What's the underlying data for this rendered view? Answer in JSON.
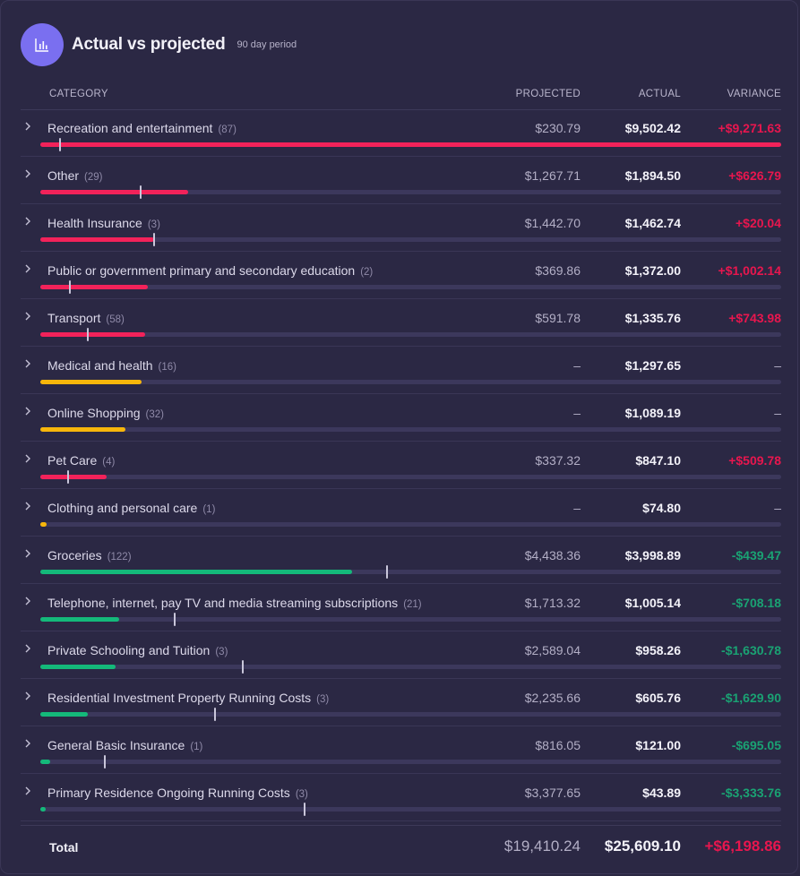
{
  "header": {
    "title": "Actual vs projected",
    "subtitle": "90 day period",
    "icon": "bar-chart-icon",
    "accent": "#7a6ff0"
  },
  "columns": {
    "category": "CATEGORY",
    "projected": "PROJECTED",
    "actual": "ACTUAL",
    "variance": "VARIANCE"
  },
  "colors": {
    "over": "#f2225a",
    "unprojected": "#f7b60b",
    "under": "#14b97a",
    "track": "#3c385c"
  },
  "rows": [
    {
      "category": "Recreation and entertainment",
      "count": "(87)",
      "projected": "$230.79",
      "actual": "$9,502.42",
      "variance": "+$9,271.63",
      "status": "over",
      "bar_fill": 1.0,
      "projected_marker": 0.025
    },
    {
      "category": "Other",
      "count": "(29)",
      "projected": "$1,267.71",
      "actual": "$1,894.50",
      "variance": "+$626.79",
      "status": "over",
      "bar_fill": 0.2,
      "projected_marker": 0.134
    },
    {
      "category": "Health Insurance",
      "count": "(3)",
      "projected": "$1,442.70",
      "actual": "$1,462.74",
      "variance": "+$20.04",
      "status": "over",
      "bar_fill": 0.154,
      "projected_marker": 0.152
    },
    {
      "category": "Public or government primary and secondary education",
      "count": "(2)",
      "projected": "$369.86",
      "actual": "$1,372.00",
      "variance": "+$1,002.14",
      "status": "over",
      "bar_fill": 0.145,
      "projected_marker": 0.039
    },
    {
      "category": "Transport",
      "count": "(58)",
      "projected": "$591.78",
      "actual": "$1,335.76",
      "variance": "+$743.98",
      "status": "over",
      "bar_fill": 0.141,
      "projected_marker": 0.063
    },
    {
      "category": "Medical and health",
      "count": "(16)",
      "projected": "–",
      "actual": "$1,297.65",
      "variance": "–",
      "status": "unprojected",
      "bar_fill": 0.137,
      "projected_marker": null
    },
    {
      "category": "Online Shopping",
      "count": "(32)",
      "projected": "–",
      "actual": "$1,089.19",
      "variance": "–",
      "status": "unprojected",
      "bar_fill": 0.115,
      "projected_marker": null
    },
    {
      "category": "Pet Care",
      "count": "(4)",
      "projected": "$337.32",
      "actual": "$847.10",
      "variance": "+$509.78",
      "status": "over",
      "bar_fill": 0.09,
      "projected_marker": 0.036
    },
    {
      "category": "Clothing and personal care",
      "count": "(1)",
      "projected": "–",
      "actual": "$74.80",
      "variance": "–",
      "status": "unprojected",
      "bar_fill": 0.008,
      "projected_marker": null
    },
    {
      "category": "Groceries",
      "count": "(122)",
      "projected": "$4,438.36",
      "actual": "$3,998.89",
      "variance": "-$439.47",
      "status": "under",
      "bar_fill": 0.421,
      "projected_marker": 0.467
    },
    {
      "category": "Telephone, internet, pay TV and media streaming subscriptions",
      "count": "(21)",
      "projected": "$1,713.32",
      "actual": "$1,005.14",
      "variance": "-$708.18",
      "status": "under",
      "bar_fill": 0.106,
      "projected_marker": 0.18
    },
    {
      "category": "Private Schooling and Tuition",
      "count": "(3)",
      "projected": "$2,589.04",
      "actual": "$958.26",
      "variance": "-$1,630.78",
      "status": "under",
      "bar_fill": 0.101,
      "projected_marker": 0.272
    },
    {
      "category": "Residential Investment Property Running Costs",
      "count": "(3)",
      "projected": "$2,235.66",
      "actual": "$605.76",
      "variance": "-$1,629.90",
      "status": "under",
      "bar_fill": 0.064,
      "projected_marker": 0.235
    },
    {
      "category": "General Basic Insurance",
      "count": "(1)",
      "projected": "$816.05",
      "actual": "$121.00",
      "variance": "-$695.05",
      "status": "under",
      "bar_fill": 0.013,
      "projected_marker": 0.086
    },
    {
      "category": "Primary Residence Ongoing Running Costs",
      "count": "(3)",
      "projected": "$3,377.65",
      "actual": "$43.89",
      "variance": "-$3,333.76",
      "status": "under",
      "bar_fill": 0.005,
      "projected_marker": 0.355
    }
  ],
  "total": {
    "label": "Total",
    "projected": "$19,410.24",
    "actual": "$25,609.10",
    "variance": "+$6,198.86"
  }
}
